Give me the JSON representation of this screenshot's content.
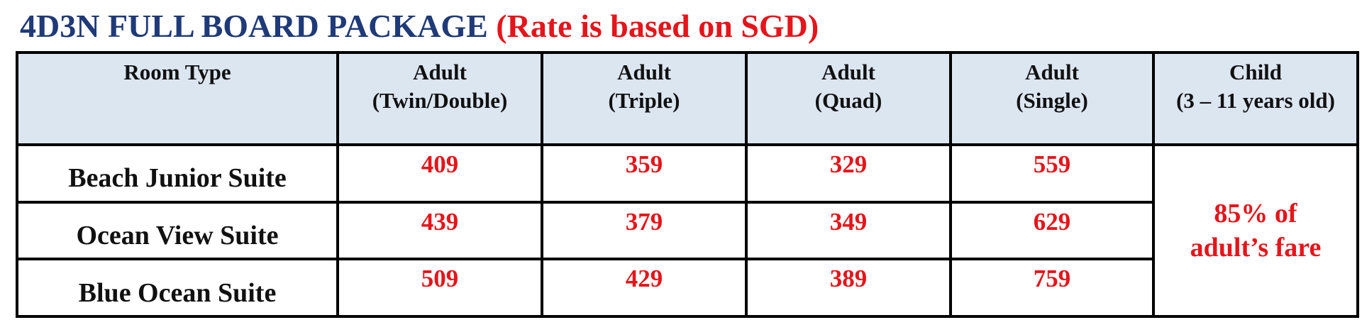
{
  "header": {
    "title": "4D3N FULL BOARD PACKAGE",
    "note": "(Rate is based on SGD)"
  },
  "table": {
    "columns": [
      [
        "Room Type"
      ],
      [
        "Adult",
        "(Twin/Double)"
      ],
      [
        "Adult",
        "(Triple)"
      ],
      [
        "Adult",
        "(Quad)"
      ],
      [
        "Adult",
        "(Single)"
      ],
      [
        "Child",
        "(3 – 11 years old)"
      ]
    ],
    "rows": [
      [
        "Beach Junior Suite",
        409,
        359,
        329,
        559
      ],
      [
        "Ocean View Suite",
        439,
        379,
        349,
        629
      ],
      [
        "Blue Ocean Suite",
        509,
        429,
        389,
        759
      ]
    ],
    "child_rate": [
      "85% of",
      "adult’s fare"
    ]
  }
}
